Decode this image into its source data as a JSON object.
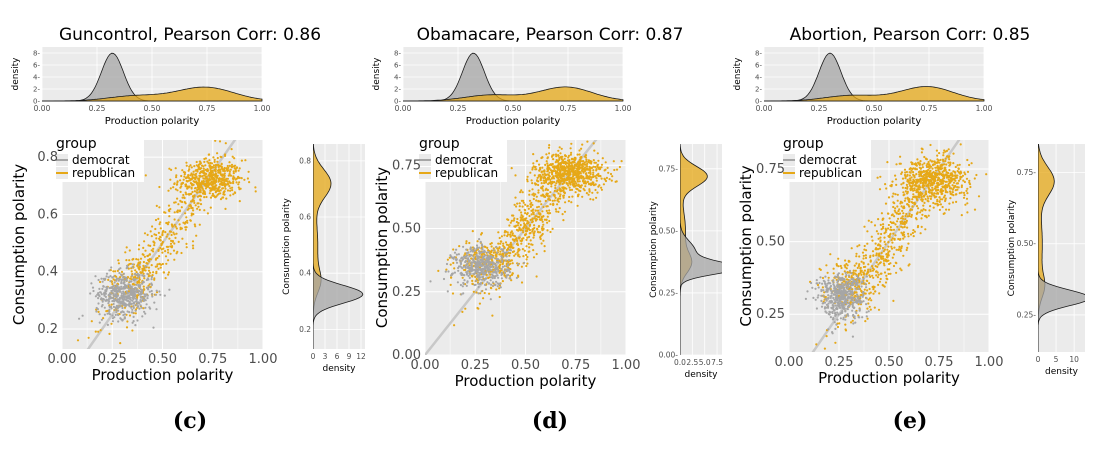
{
  "colors": {
    "democrat": "#a6a6a6",
    "republican": "#e6a817",
    "panel_bg": "#ebebeb",
    "grid": "#ffffff",
    "diagonal": "#c8c8c8",
    "density_line": "#1a1a1a"
  },
  "chart_data": [
    {
      "type": "scatter",
      "caption": "(c)",
      "title": "Guncontrol, Pearson Corr: 0.86",
      "xlabel": "Production polarity",
      "ylabel": "Consumption polarity",
      "xlim": [
        0,
        1
      ],
      "ylim": [
        0.13,
        0.86
      ],
      "xticks": [
        0,
        0.25,
        0.5,
        0.75,
        1
      ],
      "xtick_labels": [
        "0.00",
        "0.25",
        "0.50",
        "0.75",
        "1.00"
      ],
      "yticks": [
        0.2,
        0.4,
        0.6,
        0.8
      ],
      "ytick_labels": [
        "0.2",
        "0.4",
        "0.6",
        "0.8"
      ],
      "diagonal": true,
      "legend": {
        "title": "group",
        "placement": "top-left",
        "entries": [
          "democrat",
          "republican"
        ]
      },
      "series": [
        {
          "name": "democrat",
          "center": [
            0.31,
            0.32
          ],
          "spread": [
            0.07,
            0.04
          ],
          "count": 480
        },
        {
          "name": "republican",
          "clusters": [
            {
              "center": [
                0.74,
                0.72
              ],
              "spread": [
                0.08,
                0.035
              ],
              "count": 520
            },
            {
              "center": [
                0.5,
                0.5
              ],
              "spread": [
                0.14,
                0.12
              ],
              "count": 380
            },
            {
              "center": [
                0.35,
                0.37
              ],
              "spread": [
                0.06,
                0.045
              ],
              "count": 120
            }
          ]
        }
      ],
      "top_density": {
        "xlabel": "Production polarity",
        "ylabel": "density",
        "xticks": [
          0,
          0.25,
          0.5,
          0.75,
          1
        ],
        "xtick_labels": [
          "0.00",
          "0.25",
          "0.50",
          "0.75",
          "1.00"
        ],
        "yticks": [
          0,
          2,
          4,
          6,
          8
        ],
        "ytick_labels": [
          "0-",
          "2-",
          "4-",
          "6-",
          "8-"
        ],
        "ylim": [
          0,
          9
        ],
        "curves": [
          {
            "name": "democrat",
            "components": [
              {
                "mu": 0.32,
                "sd": 0.05,
                "w": 1.0
              }
            ]
          },
          {
            "name": "republican",
            "components": [
              {
                "mu": 0.74,
                "sd": 0.13,
                "w": 0.75
              },
              {
                "mu": 0.42,
                "sd": 0.12,
                "w": 0.25
              }
            ]
          }
        ]
      },
      "right_density": {
        "xlabel": "density",
        "ylabel": "Consumption polarity",
        "xticks": [
          0,
          3,
          6,
          9,
          12
        ],
        "xtick_labels": [
          "0",
          "3",
          "6",
          "9",
          "12"
        ],
        "xlim": [
          0,
          13
        ],
        "yticks": [
          0.2,
          0.4,
          0.6,
          0.8
        ],
        "ytick_labels": [
          "0.2",
          "0.4",
          "0.6",
          "0.8"
        ],
        "curves": [
          {
            "name": "democrat",
            "components": [
              {
                "mu": 0.325,
                "sd": 0.032,
                "w": 1.0
              }
            ]
          },
          {
            "name": "republican",
            "components": [
              {
                "mu": 0.72,
                "sd": 0.05,
                "w": 0.55
              },
              {
                "mu": 0.5,
                "sd": 0.1,
                "w": 0.3
              },
              {
                "mu": 0.37,
                "sd": 0.04,
                "w": 0.15
              }
            ]
          }
        ]
      }
    },
    {
      "type": "scatter",
      "caption": "(d)",
      "title": "Obamacare, Pearson Corr: 0.87",
      "xlabel": "Production polarity",
      "ylabel": "Consumption polarity",
      "xlim": [
        0,
        1
      ],
      "ylim": [
        0,
        0.85
      ],
      "xticks": [
        0,
        0.25,
        0.5,
        0.75,
        1
      ],
      "xtick_labels": [
        "0.00",
        "0.25",
        "0.50",
        "0.75",
        "1.00"
      ],
      "yticks": [
        0,
        0.25,
        0.5,
        0.75
      ],
      "ytick_labels": [
        "0.00",
        "0.25",
        "0.50",
        "0.75"
      ],
      "diagonal": true,
      "legend": {
        "title": "group",
        "placement": "top-left",
        "entries": [
          "democrat",
          "republican"
        ]
      },
      "series": [
        {
          "name": "democrat",
          "center": [
            0.28,
            0.35
          ],
          "spread": [
            0.07,
            0.04
          ],
          "count": 420
        },
        {
          "name": "republican",
          "clusters": [
            {
              "center": [
                0.72,
                0.72
              ],
              "spread": [
                0.09,
                0.04
              ],
              "count": 700
            },
            {
              "center": [
                0.5,
                0.52
              ],
              "spread": [
                0.12,
                0.1
              ],
              "count": 500
            },
            {
              "center": [
                0.3,
                0.37
              ],
              "spread": [
                0.07,
                0.04
              ],
              "count": 250
            }
          ]
        }
      ],
      "top_density": {
        "xlabel": "Production polarity",
        "ylabel": "density",
        "xticks": [
          0,
          0.25,
          0.5,
          0.75,
          1
        ],
        "xtick_labels": [
          "0.00",
          "0.25",
          "0.50",
          "0.75",
          "1.00"
        ],
        "yticks": [
          0,
          2,
          4,
          6,
          8
        ],
        "ytick_labels": [
          "0-",
          "2-",
          "4-",
          "6-",
          "8-"
        ],
        "ylim": [
          0,
          9
        ],
        "curves": [
          {
            "name": "democrat",
            "components": [
              {
                "mu": 0.32,
                "sd": 0.05,
                "w": 1.0
              }
            ]
          },
          {
            "name": "republican",
            "components": [
              {
                "mu": 0.74,
                "sd": 0.12,
                "w": 0.7
              },
              {
                "mu": 0.4,
                "sd": 0.12,
                "w": 0.3
              }
            ]
          }
        ]
      },
      "right_density": {
        "xlabel": "density",
        "ylabel": "Consumption polarity",
        "xticks": [
          0,
          2.5,
          5,
          7.5
        ],
        "xtick_labels": [
          "0.0",
          "2.5",
          "5.0",
          "7.5"
        ],
        "xlim": [
          0,
          8.5
        ],
        "yticks": [
          0,
          0.25,
          0.5,
          0.75
        ],
        "ytick_labels": [
          "0.00-",
          "0.25-",
          "0.50-",
          "0.75-"
        ],
        "curves": [
          {
            "name": "democrat",
            "components": [
              {
                "mu": 0.35,
                "sd": 0.025,
                "w": 0.7
              },
              {
                "mu": 0.42,
                "sd": 0.04,
                "w": 0.3
              }
            ]
          },
          {
            "name": "republican",
            "components": [
              {
                "mu": 0.72,
                "sd": 0.04,
                "w": 0.55
              },
              {
                "mu": 0.5,
                "sd": 0.09,
                "w": 0.25
              },
              {
                "mu": 0.37,
                "sd": 0.04,
                "w": 0.2
              }
            ]
          }
        ]
      }
    },
    {
      "type": "scatter",
      "caption": "(e)",
      "title": "Abortion, Pearson Corr: 0.85",
      "xlabel": "Production polarity",
      "ylabel": "Consumption polarity",
      "xlim": [
        0,
        1
      ],
      "ylim": [
        0.12,
        0.85
      ],
      "xticks": [
        0,
        0.25,
        0.5,
        0.75,
        1
      ],
      "xtick_labels": [
        "0.00",
        "0.25",
        "0.50",
        "0.75",
        "1.00"
      ],
      "yticks": [
        0.25,
        0.5,
        0.75
      ],
      "ytick_labels": [
        "0.25",
        "0.50",
        "0.75"
      ],
      "diagonal": true,
      "legend": {
        "title": "group",
        "placement": "top-left",
        "entries": [
          "democrat",
          "republican"
        ]
      },
      "series": [
        {
          "name": "democrat",
          "center": [
            0.26,
            0.31
          ],
          "spread": [
            0.06,
            0.04
          ],
          "count": 460
        },
        {
          "name": "republican",
          "clusters": [
            {
              "center": [
                0.72,
                0.71
              ],
              "spread": [
                0.09,
                0.04
              ],
              "count": 650
            },
            {
              "center": [
                0.5,
                0.52
              ],
              "spread": [
                0.13,
                0.1
              ],
              "count": 450
            },
            {
              "center": [
                0.3,
                0.36
              ],
              "spread": [
                0.07,
                0.04
              ],
              "count": 200
            }
          ]
        }
      ],
      "top_density": {
        "xlabel": "Production polarity",
        "ylabel": "density",
        "xticks": [
          0,
          0.25,
          0.5,
          0.75,
          1
        ],
        "xtick_labels": [
          "0.00",
          "0.25",
          "0.50",
          "0.75",
          "1.00"
        ],
        "yticks": [
          0,
          2,
          4,
          6,
          8
        ],
        "ytick_labels": [
          "0-",
          "2-",
          "4-",
          "6-",
          "8-"
        ],
        "ylim": [
          0,
          9
        ],
        "curves": [
          {
            "name": "democrat",
            "components": [
              {
                "mu": 0.3,
                "sd": 0.05,
                "w": 1.0
              }
            ]
          },
          {
            "name": "republican",
            "components": [
              {
                "mu": 0.74,
                "sd": 0.12,
                "w": 0.72
              },
              {
                "mu": 0.4,
                "sd": 0.12,
                "w": 0.28
              }
            ]
          }
        ]
      },
      "right_density": {
        "xlabel": "density",
        "ylabel": "Consumption polarity",
        "xticks": [
          0,
          5,
          10
        ],
        "xtick_labels": [
          "0",
          "5",
          "10"
        ],
        "xlim": [
          0,
          13
        ],
        "yticks": [
          0.25,
          0.5,
          0.75
        ],
        "ytick_labels": [
          "0.25-",
          "0.50-",
          "0.75-"
        ],
        "curves": [
          {
            "name": "democrat",
            "components": [
              {
                "mu": 0.31,
                "sd": 0.028,
                "w": 1.0
              }
            ]
          },
          {
            "name": "republican",
            "components": [
              {
                "mu": 0.72,
                "sd": 0.05,
                "w": 0.55
              },
              {
                "mu": 0.5,
                "sd": 0.1,
                "w": 0.3
              },
              {
                "mu": 0.35,
                "sd": 0.04,
                "w": 0.15
              }
            ]
          }
        ]
      }
    }
  ]
}
